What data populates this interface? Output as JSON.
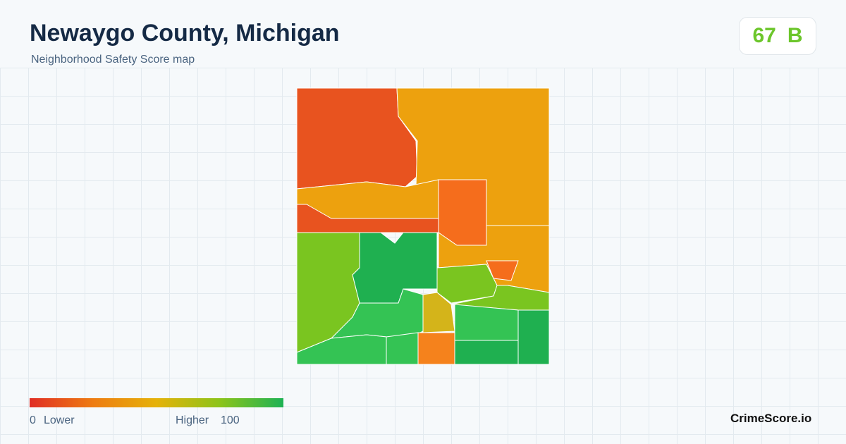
{
  "header": {
    "title": "Newaygo County, Michigan",
    "subtitle": "Neighborhood Safety Score map"
  },
  "score": {
    "value": 67,
    "grade": "B"
  },
  "legend": {
    "min": 0,
    "min_label": "Lower",
    "max_label": "Higher",
    "max": 100
  },
  "brand": "CrimeScore.io"
}
